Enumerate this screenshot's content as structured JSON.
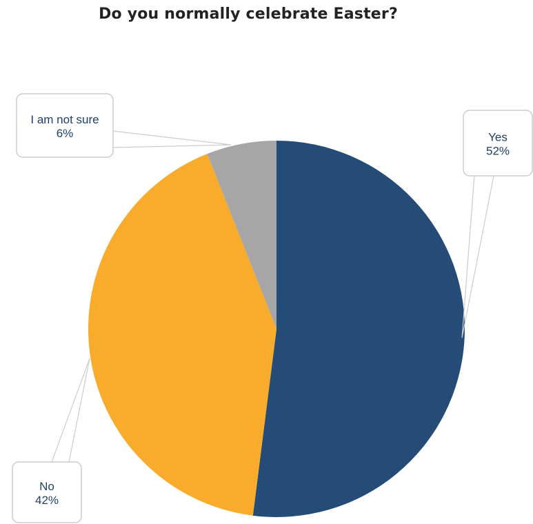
{
  "chart_data": {
    "type": "pie",
    "title": "Do you normally celebrate Easter?",
    "start_angle_deg": 0,
    "direction": "clockwise",
    "slices": [
      {
        "label": "Yes",
        "value": 52,
        "value_label": "52%",
        "color": "#244c77"
      },
      {
        "label": "No",
        "value": 42,
        "value_label": "42%",
        "color": "#f9ab2b"
      },
      {
        "label": "I am not sure",
        "value": 6,
        "value_label": "6%",
        "color": "#a6a6a6"
      }
    ],
    "legend": "none",
    "callout_border_color": "#cccccc",
    "callout_text_color": "#1f3f66"
  }
}
